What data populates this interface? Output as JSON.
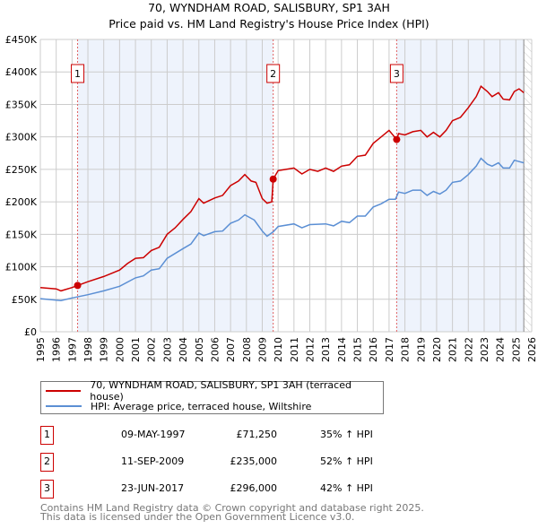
{
  "chart_data": {
    "type": "line",
    "title": "70, WYNDHAM ROAD, SALISBURY, SP1 3AH",
    "subtitle": "Price paid vs. HM Land Registry's House Price Index (HPI)",
    "xlim": [
      1995,
      2026
    ],
    "ylim": [
      0,
      450000
    ],
    "x_ticks": [
      "1995",
      "1996",
      "1997",
      "1998",
      "1999",
      "2000",
      "2001",
      "2002",
      "2003",
      "2004",
      "2005",
      "2006",
      "2007",
      "2008",
      "2009",
      "2010",
      "2011",
      "2012",
      "2013",
      "2014",
      "2015",
      "2016",
      "2017",
      "2018",
      "2019",
      "2020",
      "2021",
      "2022",
      "2023",
      "2024",
      "2025",
      "2026"
    ],
    "y_ticks": [
      {
        "v": 0,
        "label": "£0"
      },
      {
        "v": 50000,
        "label": "£50K"
      },
      {
        "v": 100000,
        "label": "£100K"
      },
      {
        "v": 150000,
        "label": "£150K"
      },
      {
        "v": 200000,
        "label": "£200K"
      },
      {
        "v": 250000,
        "label": "£250K"
      },
      {
        "v": 300000,
        "label": "£300K"
      },
      {
        "v": 350000,
        "label": "£350K"
      },
      {
        "v": 400000,
        "label": "£400K"
      },
      {
        "v": 450000,
        "label": "£450K"
      }
    ],
    "grid": true,
    "series": [
      {
        "name": "70, WYNDHAM ROAD, SALISBURY, SP1 3AH (terraced house)",
        "color": "#cc0000",
        "x": [
          1995,
          1996,
          1996.3,
          1997,
          1997.35,
          1998,
          1999,
          2000,
          2000.5,
          2001,
          2001.5,
          2002,
          2002.5,
          2003,
          2003.5,
          2004,
          2004.5,
          2005,
          2005.3,
          2006,
          2006.5,
          2007,
          2007.5,
          2007.9,
          2008.3,
          2008.6,
          2009,
          2009.3,
          2009.6,
          2009.69,
          2010,
          2010.5,
          2011,
          2011.5,
          2012,
          2012.5,
          2013,
          2013.5,
          2014,
          2014.5,
          2015,
          2015.5,
          2016,
          2016.5,
          2017,
          2017.48,
          2017.6,
          2018,
          2018.5,
          2019,
          2019.4,
          2019.8,
          2020.2,
          2020.6,
          2021,
          2021.5,
          2022,
          2022.5,
          2022.8,
          2023.2,
          2023.5,
          2023.9,
          2024.2,
          2024.6,
          2024.9,
          2025.2,
          2025.5
        ],
        "y": [
          68000,
          66000,
          63000,
          68000,
          71250,
          77000,
          85000,
          95000,
          105000,
          113000,
          114000,
          125000,
          130000,
          150000,
          160000,
          173000,
          185000,
          205000,
          198000,
          206000,
          210000,
          225000,
          232000,
          242000,
          232000,
          230000,
          205000,
          198000,
          200000,
          235000,
          248000,
          250000,
          252000,
          243000,
          250000,
          247000,
          252000,
          247000,
          255000,
          257000,
          270000,
          272000,
          290000,
          300000,
          310000,
          296000,
          305000,
          303000,
          308000,
          310000,
          300000,
          307000,
          300000,
          310000,
          325000,
          330000,
          345000,
          362000,
          378000,
          370000,
          362000,
          368000,
          358000,
          357000,
          370000,
          374000,
          368000
        ]
      },
      {
        "name": "HPI: Average price, terraced house, Wiltshire",
        "color": "#5b8fd4",
        "x": [
          1995,
          1996.3,
          1997,
          1998,
          1999,
          2000,
          2001,
          2001.5,
          2002,
          2002.5,
          2003,
          2004,
          2004.5,
          2005,
          2005.3,
          2006,
          2006.5,
          2007,
          2007.5,
          2007.9,
          2008.5,
          2009,
          2009.3,
          2009.7,
          2010,
          2011,
          2011.5,
          2012,
          2013,
          2013.5,
          2014,
          2014.5,
          2015,
          2015.5,
          2016,
          2016.5,
          2017,
          2017.4,
          2017.6,
          2018,
          2018.5,
          2019,
          2019.4,
          2019.8,
          2020.2,
          2020.6,
          2021,
          2021.5,
          2022,
          2022.5,
          2022.8,
          2023.2,
          2023.5,
          2023.9,
          2024.2,
          2024.6,
          2024.9,
          2025.2,
          2025.5
        ],
        "y": [
          51000,
          48000,
          52000,
          57000,
          63000,
          70000,
          83000,
          86000,
          95000,
          97000,
          113000,
          128000,
          135000,
          152000,
          148000,
          154000,
          155000,
          167000,
          172000,
          180000,
          172000,
          155000,
          147000,
          154000,
          162000,
          166000,
          160000,
          165000,
          166000,
          163000,
          170000,
          168000,
          178000,
          178000,
          192000,
          197000,
          204000,
          204000,
          215000,
          213000,
          218000,
          218000,
          210000,
          216000,
          212000,
          218000,
          230000,
          232000,
          242000,
          255000,
          267000,
          258000,
          255000,
          260000,
          252000,
          252000,
          264000,
          262000,
          260000
        ]
      }
    ],
    "sales": [
      {
        "label": "1",
        "x": 1997.35,
        "y": 71250
      },
      {
        "label": "2",
        "x": 2009.69,
        "y": 235000
      },
      {
        "label": "3",
        "x": 2017.48,
        "y": 296000
      }
    ],
    "legend": "below"
  },
  "legend": {
    "property": "70, WYNDHAM ROAD, SALISBURY, SP1 3AH (terraced house)",
    "hpi": "HPI: Average price, terraced house, Wiltshire"
  },
  "transactions": [
    {
      "num": "1",
      "date": "09-MAY-1997",
      "price": "£71,250",
      "hpi": "35% ↑ HPI"
    },
    {
      "num": "2",
      "date": "11-SEP-2009",
      "price": "£235,000",
      "hpi": "52% ↑ HPI"
    },
    {
      "num": "3",
      "date": "23-JUN-2017",
      "price": "£296,000",
      "hpi": "42% ↑ HPI"
    }
  ],
  "footer": {
    "line1": "Contains HM Land Registry data © Crown copyright and database right 2025.",
    "line2": "This data is licensed under the Open Government Licence v3.0."
  }
}
